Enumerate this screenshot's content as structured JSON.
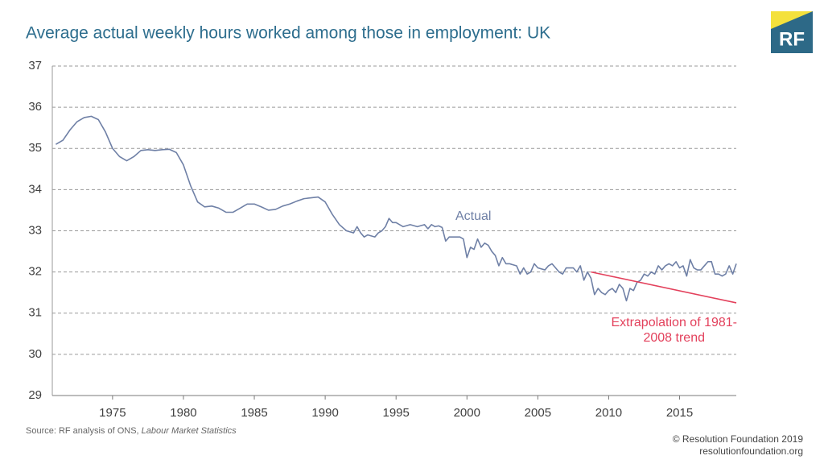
{
  "chart_data": {
    "type": "line",
    "title": "Average actual weekly hours worked among those in employment: UK",
    "xlim": [
      1970.75,
      2019
    ],
    "xticks": [
      1975,
      1980,
      1985,
      1990,
      1995,
      2000,
      2005,
      2010,
      2015
    ],
    "ylim": [
      29,
      37
    ],
    "yticks": [
      29,
      30,
      31,
      32,
      33,
      34,
      35,
      36,
      37
    ],
    "grid": true,
    "series": [
      {
        "name": "Actual",
        "color": "#6f80a6",
        "x": [
          1971,
          1971.5,
          1972,
          1972.5,
          1973,
          1973.5,
          1974,
          1974.5,
          1975,
          1975.5,
          1976,
          1976.5,
          1977,
          1977.5,
          1978,
          1978.5,
          1979,
          1979.5,
          1980,
          1980.5,
          1981,
          1981.5,
          1982,
          1982.5,
          1983,
          1983.5,
          1984,
          1984.5,
          1985,
          1985.5,
          1986,
          1986.5,
          1987,
          1987.5,
          1988,
          1988.5,
          1989,
          1989.5,
          1990,
          1990.5,
          1991,
          1991.5,
          1992,
          1992.25,
          1992.5,
          1992.75,
          1993,
          1993.5,
          1993.75,
          1994,
          1994.25,
          1994.5,
          1994.75,
          1995,
          1995.5,
          1996,
          1996.5,
          1997,
          1997.25,
          1997.5,
          1997.75,
          1998,
          1998.25,
          1998.5,
          1998.75,
          1999,
          1999.5,
          1999.75,
          2000,
          2000.25,
          2000.5,
          2000.75,
          2001,
          2001.25,
          2001.5,
          2001.75,
          2002,
          2002.25,
          2002.5,
          2002.75,
          2003,
          2003.5,
          2003.75,
          2004,
          2004.25,
          2004.5,
          2004.75,
          2005,
          2005.5,
          2005.75,
          2006,
          2006.5,
          2006.75,
          2007,
          2007.5,
          2007.75,
          2008,
          2008.25,
          2008.5,
          2008.75,
          2009,
          2009.25,
          2009.5,
          2009.75,
          2010,
          2010.25,
          2010.5,
          2010.75,
          2011,
          2011.25,
          2011.5,
          2011.75,
          2012,
          2012.25,
          2012.5,
          2012.75,
          2013,
          2013.25,
          2013.5,
          2013.75,
          2014,
          2014.25,
          2014.5,
          2014.75,
          2015,
          2015.25,
          2015.5,
          2015.75,
          2016,
          2016.25,
          2016.5,
          2016.75,
          2017,
          2017.25,
          2017.5,
          2017.75,
          2018,
          2018.25,
          2018.5,
          2018.75,
          2019
        ],
        "values": [
          35.1,
          35.2,
          35.45,
          35.65,
          35.75,
          35.78,
          35.7,
          35.4,
          35.0,
          34.8,
          34.7,
          34.8,
          34.95,
          34.97,
          34.95,
          34.97,
          34.98,
          34.9,
          34.6,
          34.1,
          33.7,
          33.58,
          33.6,
          33.55,
          33.45,
          33.45,
          33.55,
          33.65,
          33.65,
          33.58,
          33.5,
          33.52,
          33.6,
          33.65,
          33.72,
          33.78,
          33.8,
          33.82,
          33.7,
          33.4,
          33.15,
          33.0,
          32.95,
          33.1,
          32.95,
          32.85,
          32.9,
          32.85,
          32.95,
          33.0,
          33.1,
          33.3,
          33.2,
          33.2,
          33.1,
          33.15,
          33.1,
          33.15,
          33.05,
          33.15,
          33.1,
          33.12,
          33.08,
          32.75,
          32.85,
          32.85,
          32.85,
          32.8,
          32.35,
          32.6,
          32.55,
          32.8,
          32.6,
          32.7,
          32.65,
          32.5,
          32.4,
          32.15,
          32.35,
          32.2,
          32.2,
          32.15,
          31.95,
          32.1,
          31.95,
          32.0,
          32.2,
          32.1,
          32.05,
          32.15,
          32.2,
          32.0,
          31.95,
          32.1,
          32.1,
          32.0,
          32.15,
          31.8,
          32.0,
          31.85,
          31.45,
          31.6,
          31.5,
          31.45,
          31.55,
          31.6,
          31.5,
          31.7,
          31.6,
          31.3,
          31.6,
          31.55,
          31.75,
          31.8,
          31.95,
          31.9,
          32.0,
          31.95,
          32.15,
          32.05,
          32.15,
          32.2,
          32.15,
          32.25,
          32.1,
          32.15,
          31.9,
          32.3,
          32.1,
          32.05,
          32.05,
          32.15,
          32.25,
          32.25,
          31.95,
          31.95,
          31.9,
          31.95,
          32.15,
          31.95,
          32.2
        ]
      },
      {
        "name": "Extrapolation of 1981-2008 trend",
        "color": "#e3415c",
        "x": [
          2008.75,
          2019
        ],
        "values": [
          32.0,
          31.25
        ]
      }
    ],
    "annotations": [
      "Actual",
      "Extrapolation of 1981-",
      "2008 trend"
    ],
    "source": {
      "text": "Source: RF analysis of ONS, ",
      "italic": "Labour Market Statistics"
    }
  },
  "logo": "RF",
  "footer": [
    "© Resolution Foundation 2019",
    "resolutionfoundation.org"
  ]
}
